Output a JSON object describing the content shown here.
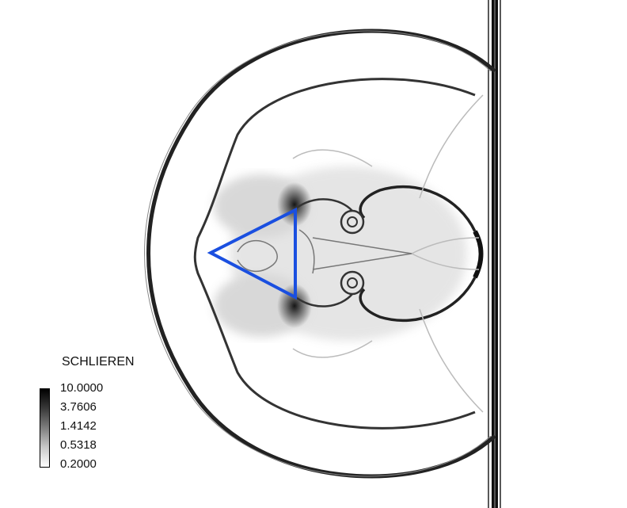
{
  "legend": {
    "title": "SCHLIEREN",
    "ticks": [
      "10.0000",
      "3.7606",
      "1.4142",
      "0.5318",
      "0.2000"
    ],
    "gradient_colors": [
      "#000000",
      "#ffffff"
    ]
  },
  "colors": {
    "obstacle_outline": "#1a4fe0",
    "shock_lines": "#1c1c1c",
    "background": "#ffffff"
  }
}
